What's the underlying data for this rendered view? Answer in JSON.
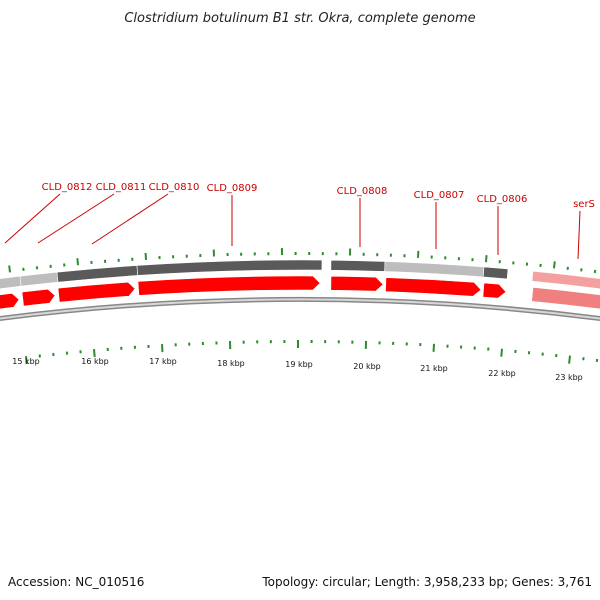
{
  "title": "Clostridium botulinum B1 str. Okra, complete genome",
  "footer": {
    "accession": "Accession: NC_010516",
    "summary": "Topology: circular; Length: 3,958,233 bp; Genes: 3,761"
  },
  "colors": {
    "gene_red": "#ff0000",
    "gene_pink": "#f08080",
    "label_red": "#cc0000",
    "tick_green": "#2e8b2e",
    "backbone_gray": "#888888",
    "bar_dark": "#5a5a5a",
    "bar_light": "#bdbdbd",
    "bar_pink": "#f5a0a0"
  },
  "gene_labels": [
    "CLD_0812",
    "CLD_0811",
    "CLD_0810",
    "CLD_0809",
    "CLD_0808",
    "CLD_0807",
    "CLD_0806",
    "serS"
  ],
  "scale_labels": [
    "15 kbp",
    "16 kbp",
    "17 kbp",
    "18 kbp",
    "19 kbp",
    "20 kbp",
    "21 kbp",
    "22 kbp",
    "23 kbp"
  ]
}
